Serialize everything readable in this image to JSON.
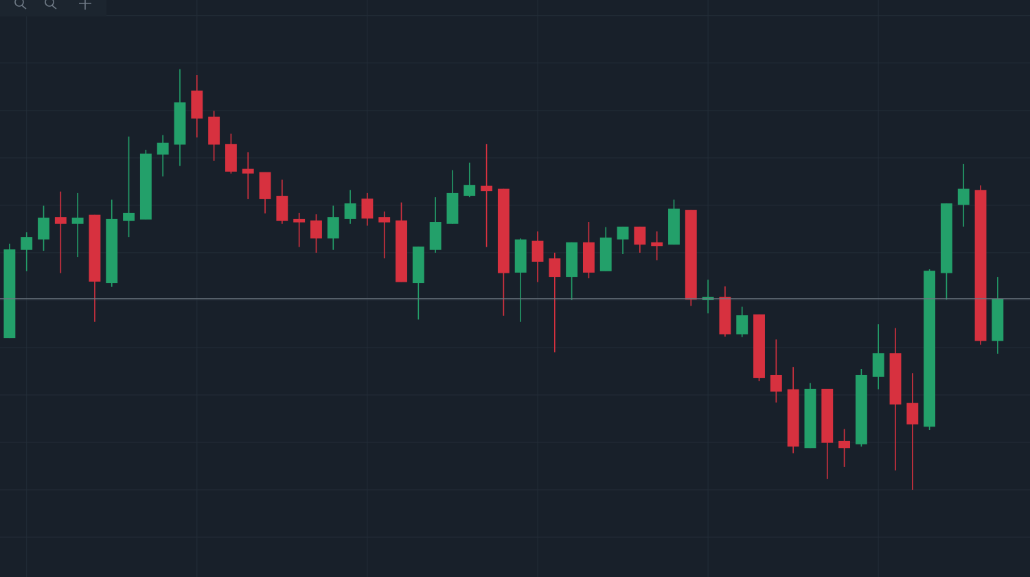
{
  "chart_data": {
    "type": "candlestick",
    "x": [
      0,
      1,
      2,
      3,
      4,
      5,
      6,
      7,
      8,
      9,
      10,
      11,
      12,
      13,
      14,
      15,
      16,
      17,
      18,
      19,
      20,
      21,
      22,
      23,
      24,
      25,
      26,
      27,
      28,
      29,
      30,
      31,
      32,
      33,
      34,
      35,
      36,
      37,
      38,
      39,
      40,
      41,
      42,
      43,
      44,
      45,
      46,
      47,
      48,
      49,
      50,
      51,
      52,
      53,
      54,
      55,
      56,
      57,
      58
    ],
    "open": [
      52.0,
      70.6,
      72.8,
      77.5,
      76.1,
      78.0,
      63.6,
      76.7,
      77.0,
      90.7,
      92.8,
      104.2,
      98.7,
      92.9,
      87.7,
      87.0,
      82.0,
      77.1,
      76.8,
      73.0,
      77.1,
      81.4,
      77.5,
      76.8,
      63.6,
      70.6,
      76.1,
      82.0,
      84.1,
      83.5,
      65.8,
      72.5,
      68.8,
      64.9,
      72.2,
      66.1,
      72.8,
      75.5,
      72.2,
      71.7,
      79.0,
      60.0,
      60.7,
      52.8,
      57.0,
      44.2,
      41.2,
      28.8,
      41.3,
      30.3,
      29.6,
      43.8,
      48.8,
      38.3,
      33.3,
      65.7,
      80.1,
      83.2,
      51.4
    ],
    "high": [
      71.9,
      74.3,
      79.9,
      82.9,
      82.6,
      78.0,
      81.2,
      94.5,
      91.7,
      94.8,
      108.7,
      107.5,
      99.9,
      95.1,
      91.2,
      87.0,
      85.4,
      78.4,
      78.1,
      79.9,
      83.2,
      82.6,
      78.7,
      80.6,
      71.3,
      81.7,
      87.4,
      89.0,
      92.9,
      83.5,
      73.0,
      74.5,
      70.0,
      72.2,
      76.5,
      75.4,
      75.5,
      75.5,
      74.5,
      81.2,
      79.0,
      64.3,
      62.9,
      58.6,
      57.0,
      51.7,
      45.9,
      42.5,
      41.3,
      32.8,
      45.5,
      54.9,
      54.1,
      44.6,
      66.5,
      80.4,
      88.7,
      84.2,
      64.9
    ],
    "low": [
      52.0,
      66.1,
      70.4,
      65.7,
      69.1,
      55.4,
      62.8,
      73.3,
      77.0,
      86.1,
      88.3,
      94.3,
      89.4,
      86.7,
      81.3,
      78.3,
      76.1,
      71.2,
      70.0,
      70.6,
      76.1,
      75.7,
      68.8,
      63.8,
      55.9,
      70.0,
      76.1,
      81.7,
      71.2,
      56.7,
      55.4,
      63.8,
      49.0,
      60.0,
      64.6,
      66.1,
      69.7,
      70.0,
      68.4,
      71.7,
      58.8,
      57.2,
      52.3,
      52.2,
      42.9,
      38.4,
      27.7,
      28.8,
      22.3,
      24.8,
      29.1,
      41.2,
      24.1,
      20.0,
      32.6,
      60.1,
      75.5,
      50.6,
      48.7
    ],
    "close": [
      70.7,
      73.3,
      77.4,
      76.1,
      77.4,
      63.9,
      77.1,
      78.4,
      90.9,
      93.2,
      101.7,
      98.3,
      92.8,
      87.1,
      86.7,
      81.3,
      76.7,
      76.4,
      73.0,
      77.5,
      80.4,
      77.2,
      76.4,
      63.8,
      71.3,
      76.5,
      82.6,
      84.3,
      83.0,
      65.7,
      72.8,
      68.1,
      64.9,
      72.2,
      65.8,
      73.2,
      75.5,
      71.7,
      71.4,
      79.3,
      60.1,
      60.7,
      52.8,
      56.8,
      43.6,
      40.7,
      29.1,
      41.3,
      29.9,
      28.8,
      44.2,
      48.8,
      38.0,
      33.8,
      66.2,
      80.4,
      83.5,
      51.4,
      60.3
    ],
    "up_color": "#23a06a",
    "down_color": "#d7313f",
    "xlim": [
      -0.56,
      59.9
    ],
    "xticks": [
      1,
      11,
      21,
      31,
      41,
      51
    ],
    "ylim": [
      1.6,
      123.3
    ],
    "yticks": [
      10,
      20,
      30,
      40,
      50,
      60,
      70,
      80,
      90,
      100,
      110,
      120
    ],
    "grid": true,
    "price_line": true
  }
}
